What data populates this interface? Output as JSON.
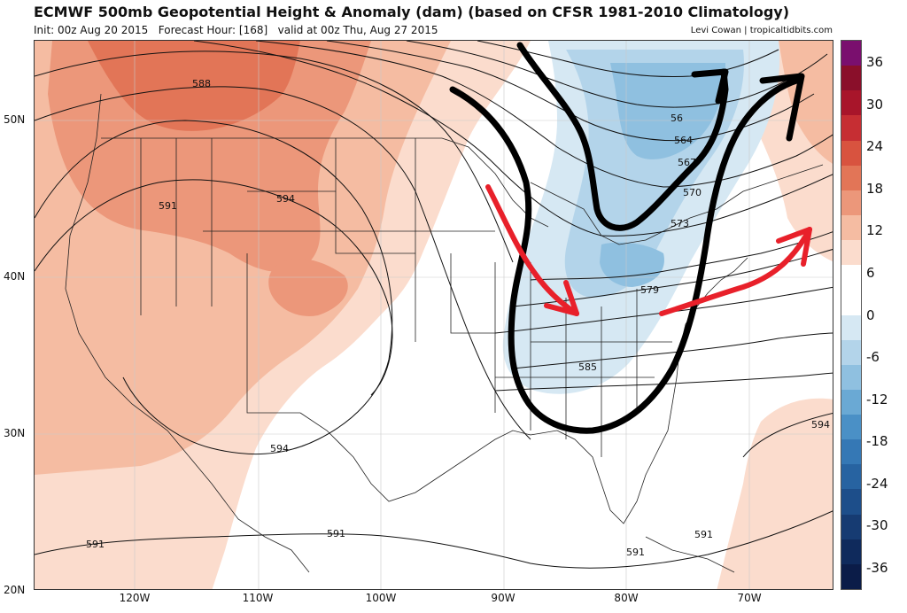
{
  "header": {
    "title": "ECMWF 500mb Geopotential Height & Anomaly (dam) (based on CFSR 1981-2010 Climatology)",
    "init_label": "Init: 00z Aug 20 2015",
    "forecast_label": "Forecast Hour: [168]",
    "valid_label": "valid at 00z Thu, Aug 27 2015",
    "credit": "Levi Cowan | tropicaltidbits.com"
  },
  "axes": {
    "lat_labels": [
      "50N",
      "40N",
      "30N",
      "20N"
    ],
    "lon_labels": [
      "120W",
      "110W",
      "100W",
      "90W",
      "80W",
      "70W"
    ]
  },
  "contour_labels": {
    "c588": "588",
    "c591a": "591",
    "c594a": "594",
    "c594b": "594",
    "c594c": "594",
    "c591b": "591",
    "c591c": "591",
    "c591d": "591",
    "c591e": "591",
    "c585": "585",
    "c579": "579",
    "c573": "573",
    "c570": "570",
    "c567": "567",
    "c564": "564",
    "c561": "56"
  },
  "colorbar": {
    "labels": [
      "36",
      "30",
      "24",
      "18",
      "12",
      "6",
      "0",
      "-6",
      "-12",
      "-18",
      "-24",
      "-30",
      "-36"
    ],
    "colors": [
      "#7a0f6e",
      "#8a0f2a",
      "#a8152a",
      "#c62e33",
      "#d8533f",
      "#e27557",
      "#ec977a",
      "#f5bca2",
      "#fbdccd",
      "#ffffff",
      "#ffffff",
      "#d6e8f3",
      "#b3d4ea",
      "#8fc0e0",
      "#6aa9d4",
      "#4a90c6",
      "#3578b5",
      "#2763a1",
      "#1d4e8a",
      "#163b72",
      "#0f2a5c",
      "#0b1c48"
    ]
  },
  "annotation_colors": {
    "trough_arrows": "#000000",
    "flow_arrows": "#e8202a"
  }
}
